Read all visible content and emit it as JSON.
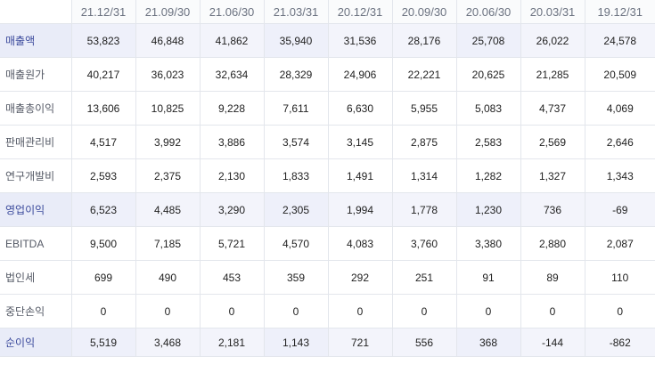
{
  "colors": {
    "highlight_label_bg": "#e9ecf8",
    "highlight_label_text": "#3b4a9c",
    "grid_line": "#e3e6ec"
  },
  "periods": [
    "21.12/31",
    "21.09/30",
    "21.06/30",
    "21.03/31",
    "20.12/31",
    "20.09/30",
    "20.06/30",
    "20.03/31",
    "19.12/31"
  ],
  "rows": [
    {
      "label": "매출액",
      "highlight": true,
      "values": [
        "53,823",
        "46,848",
        "41,862",
        "35,940",
        "31,536",
        "28,176",
        "25,708",
        "26,022",
        "24,578"
      ]
    },
    {
      "label": "매출원가",
      "highlight": false,
      "values": [
        "40,217",
        "36,023",
        "32,634",
        "28,329",
        "24,906",
        "22,221",
        "20,625",
        "21,285",
        "20,509"
      ]
    },
    {
      "label": "매출총이익",
      "highlight": false,
      "values": [
        "13,606",
        "10,825",
        "9,228",
        "7,611",
        "6,630",
        "5,955",
        "5,083",
        "4,737",
        "4,069"
      ]
    },
    {
      "label": "판매관리비",
      "highlight": false,
      "values": [
        "4,517",
        "3,992",
        "3,886",
        "3,574",
        "3,145",
        "2,875",
        "2,583",
        "2,569",
        "2,646"
      ]
    },
    {
      "label": "연구개발비",
      "highlight": false,
      "values": [
        "2,593",
        "2,375",
        "2,130",
        "1,833",
        "1,491",
        "1,314",
        "1,282",
        "1,327",
        "1,343"
      ]
    },
    {
      "label": "영업이익",
      "highlight": true,
      "values": [
        "6,523",
        "4,485",
        "3,290",
        "2,305",
        "1,994",
        "1,778",
        "1,230",
        "736",
        "-69"
      ]
    },
    {
      "label": "EBITDA",
      "highlight": false,
      "values": [
        "9,500",
        "7,185",
        "5,721",
        "4,570",
        "4,083",
        "3,760",
        "3,380",
        "2,880",
        "2,087"
      ]
    },
    {
      "label": "법인세",
      "highlight": false,
      "values": [
        "699",
        "490",
        "453",
        "359",
        "292",
        "251",
        "91",
        "89",
        "110"
      ]
    },
    {
      "label": "중단손익",
      "highlight": false,
      "values": [
        "0",
        "0",
        "0",
        "0",
        "0",
        "0",
        "0",
        "0",
        "0"
      ]
    },
    {
      "label": "순이익",
      "highlight": true,
      "values": [
        "5,519",
        "3,468",
        "2,181",
        "1,143",
        "721",
        "556",
        "368",
        "-144",
        "-862"
      ]
    }
  ]
}
